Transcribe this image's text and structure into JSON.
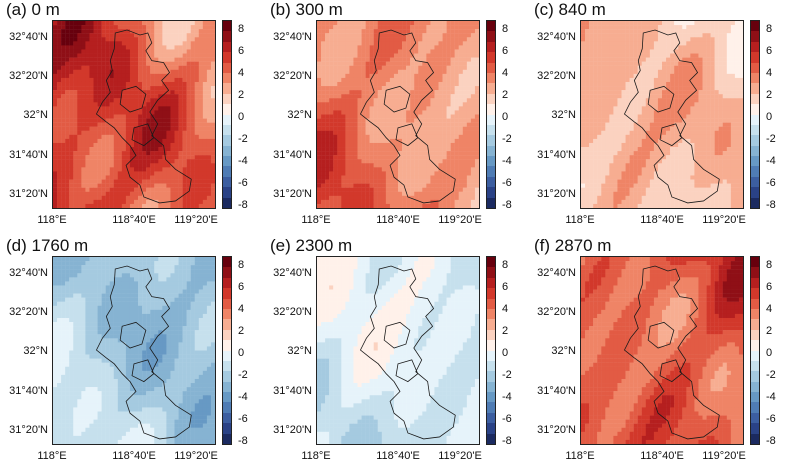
{
  "map": {
    "y_labels": [
      "32°40'N",
      "32°20'N",
      "32°N",
      "31°40'N",
      "31°20'N"
    ],
    "x_labels": [
      "118°E",
      "118°40'E",
      "119°20'E"
    ],
    "colorbar": {
      "ticks": [
        "8",
        "6",
        "4",
        "2",
        "0",
        "-2",
        "-4",
        "-6",
        "-8"
      ],
      "colors": [
        "#67000d",
        "#8f0f16",
        "#b51f1f",
        "#d2382b",
        "#e25b44",
        "#ef8466",
        "#f7ad91",
        "#fbd2c0",
        "#fff1ea",
        "#e6f3fa",
        "#c6e0ed",
        "#a5cae0",
        "#86b3d2",
        "#6799c4",
        "#4f7cb4",
        "#3c5ea0",
        "#2a4286",
        "#1b2a60"
      ]
    },
    "panels": [
      {
        "title": "(a) 0 m",
        "mean": 4.8,
        "amp": 2.2,
        "tilt_x": -2.6,
        "tilt_y": 0.6
      },
      {
        "title": "(b) 300 m",
        "mean": 3.6,
        "amp": 1.6,
        "tilt_x": -1.8,
        "tilt_y": 0.3
      },
      {
        "title": "(c) 840 m",
        "mean": 2.1,
        "amp": 1.5,
        "tilt_x": -0.6,
        "tilt_y": 0.4
      },
      {
        "title": "(d) 1760 m",
        "mean": -2.3,
        "amp": 1.4,
        "tilt_x": -1.4,
        "tilt_y": 0.6
      },
      {
        "title": "(e) 2300 m",
        "mean": -0.9,
        "amp": 1.5,
        "tilt_x": -0.5,
        "tilt_y": -0.8
      },
      {
        "title": "(f) 2870 m",
        "mean": 4.6,
        "amp": 1.9,
        "tilt_x": 0.8,
        "tilt_y": -0.4
      }
    ]
  }
}
